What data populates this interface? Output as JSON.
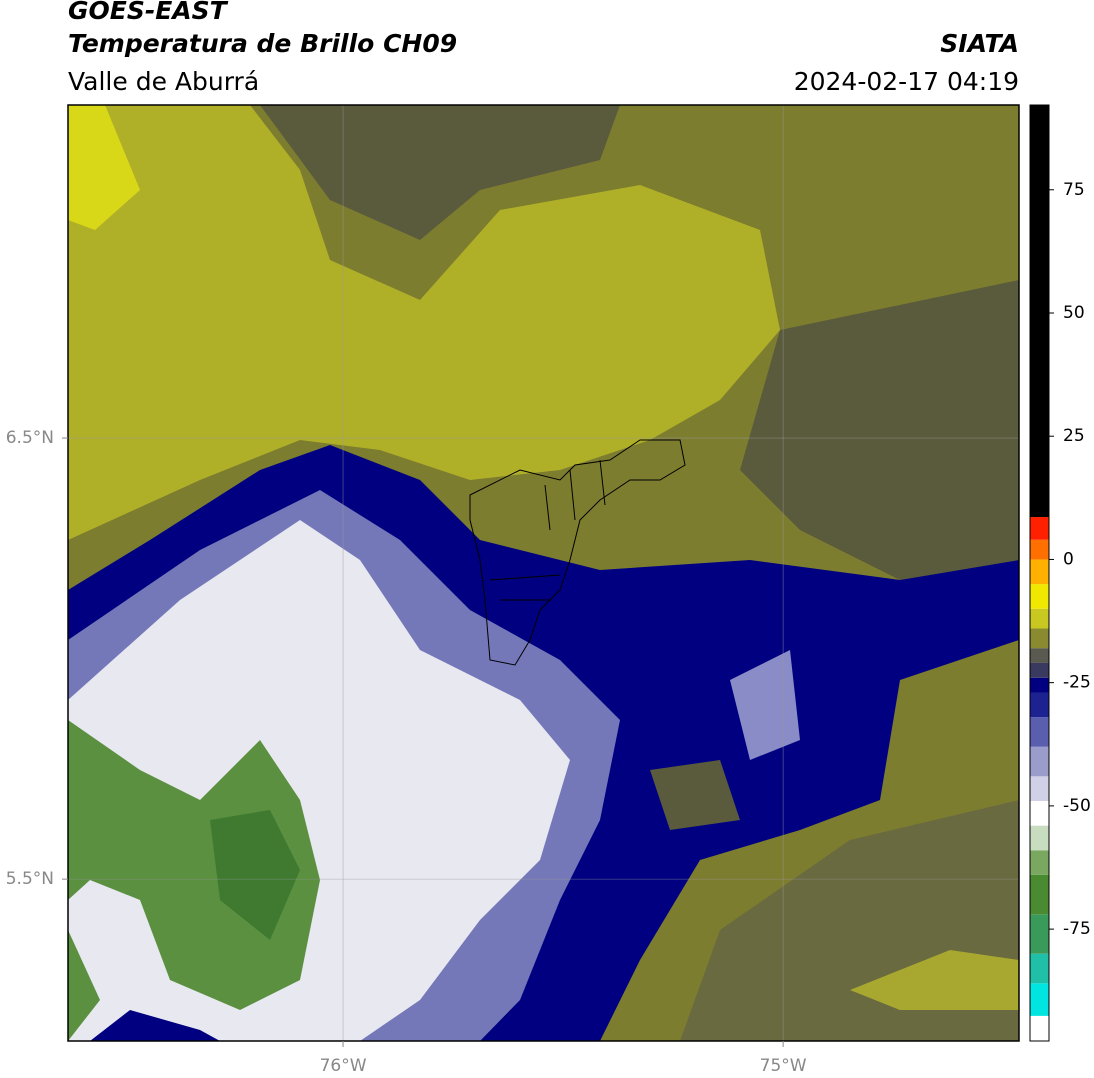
{
  "header": {
    "title": "GOES-EAST",
    "subtitle": "Temperatura de Brillo CH09",
    "region": "Valle de Aburrá",
    "source": "SIATA",
    "timestamp": "2024-02-17 04:19"
  },
  "map": {
    "xlim": [
      -76.625,
      -74.464
    ],
    "ylim": [
      5.133,
      7.255
    ],
    "xticks": [
      {
        "value": -76,
        "label": "76°W"
      },
      {
        "value": -75,
        "label": "75°W"
      }
    ],
    "yticks": [
      {
        "value": 6.5,
        "label": "6.5°N"
      },
      {
        "value": 5.5,
        "label": "5.5°N"
      }
    ],
    "grid": true
  },
  "colorbar": {
    "lim": [
      -97.7,
      92.2
    ],
    "ticks": [
      -75,
      -50,
      -25,
      0,
      25,
      50,
      75
    ],
    "bands": [
      {
        "value": -97.7,
        "color": "#ffffff"
      },
      {
        "value": -92.6,
        "color": "#00e5e0"
      },
      {
        "value": -86,
        "color": "#20c0a8"
      },
      {
        "value": -80,
        "color": "#3a9a5a"
      },
      {
        "value": -72,
        "color": "#4a8a30"
      },
      {
        "value": -64,
        "color": "#7aa860"
      },
      {
        "value": -59,
        "color": "#c8dcc0"
      },
      {
        "value": -54,
        "color": "#ffffff"
      },
      {
        "value": -49,
        "color": "#d0d0e6"
      },
      {
        "value": -44,
        "color": "#9a9ccc"
      },
      {
        "value": -38,
        "color": "#5a5eae"
      },
      {
        "value": -32,
        "color": "#1c2290"
      },
      {
        "value": -27,
        "color": "#000080"
      },
      {
        "value": -24,
        "color": "#3a3a60"
      },
      {
        "value": -21,
        "color": "#5a5a50"
      },
      {
        "value": -18,
        "color": "#8a8a30"
      },
      {
        "value": -14,
        "color": "#c8c820"
      },
      {
        "value": -10,
        "color": "#f0e800"
      },
      {
        "value": -5,
        "color": "#ffb000"
      },
      {
        "value": 0,
        "color": "#ff7000"
      },
      {
        "value": 4,
        "color": "#ff2000"
      },
      {
        "value": 8.6,
        "color": "#000000"
      }
    ]
  }
}
